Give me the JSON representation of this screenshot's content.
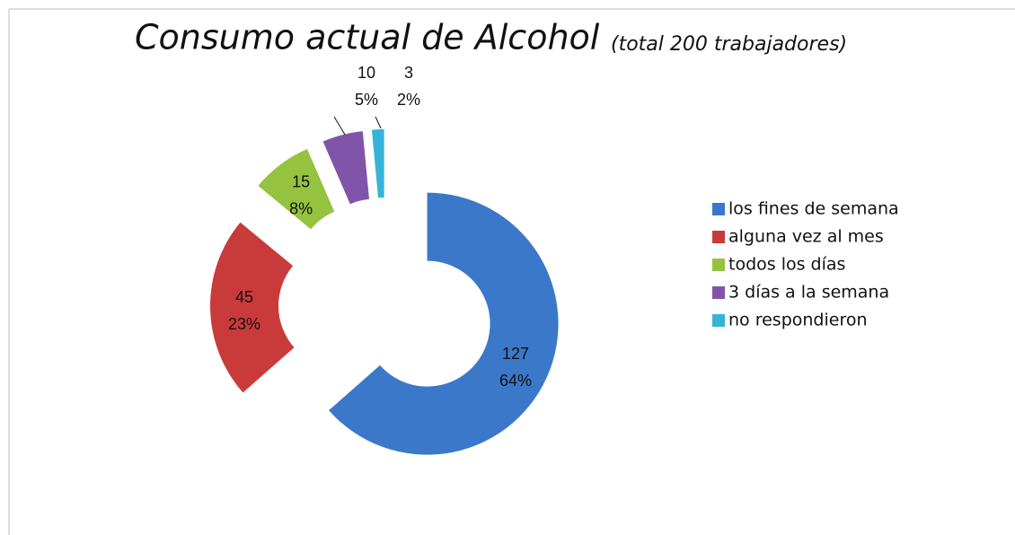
{
  "chart_data": {
    "type": "donut",
    "title": "Consumo actual de Alcohol",
    "subtitle": "(total 200 trabajadores)",
    "categories": [
      "los fines de semana",
      "alguna vez al mes",
      "todos los días",
      "3 días a la semana",
      "no respondieron"
    ],
    "values": [
      127,
      45,
      15,
      10,
      3
    ],
    "percent_labels": [
      "64%",
      "23%",
      "8%",
      "5%",
      "2%"
    ],
    "colors": [
      "#3b78c9",
      "#c93b3b",
      "#95c23f",
      "#8055a9",
      "#36b4d8"
    ],
    "legend": "right"
  }
}
